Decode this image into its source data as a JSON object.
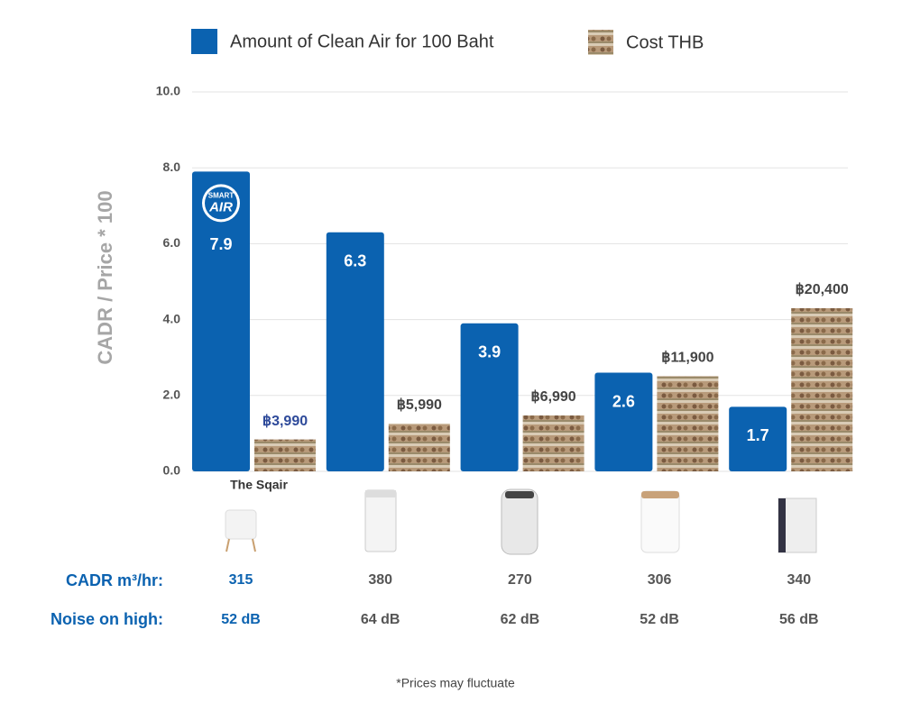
{
  "chart_data": {
    "type": "bar",
    "y_label": "CADR / Price * 100",
    "categories": [
      "The Sqair",
      null,
      null,
      null,
      null
    ],
    "series": [
      {
        "name": "Amount of Clean Air for 100 Baht",
        "color": "#0b62b0",
        "values": [
          7.9,
          6.3,
          3.9,
          2.6,
          1.7
        ]
      },
      {
        "name": "Cost THB",
        "color": "#a08060",
        "values": [
          3990,
          5990,
          6990,
          11900,
          20400
        ],
        "value_labels": [
          "฿3,990",
          "฿5,990",
          "฿6,990",
          "฿11,900",
          "฿20,400"
        ]
      }
    ],
    "ylim": [
      0,
      10
    ],
    "yticks": [
      {
        "value": 0,
        "label": "0.0"
      },
      {
        "value": 2,
        "label": "2.0"
      },
      {
        "value": 4,
        "label": "4.0"
      },
      {
        "value": 6,
        "label": "6.0"
      },
      {
        "value": 8,
        "label": "8.0"
      },
      {
        "value": 10,
        "label": "10.0"
      }
    ],
    "grid": true,
    "logo": [
      "SMART",
      "AIR"
    ]
  },
  "specs": {
    "cadr": {
      "label": "CADR m³/hr:",
      "values": [
        315,
        380,
        270,
        306,
        340
      ]
    },
    "noise": {
      "label": "Noise on high:",
      "values": [
        "52 dB",
        "64 dB",
        "62 dB",
        "52 dB",
        "56 dB"
      ]
    }
  },
  "footnote": "*Prices may fluctuate"
}
